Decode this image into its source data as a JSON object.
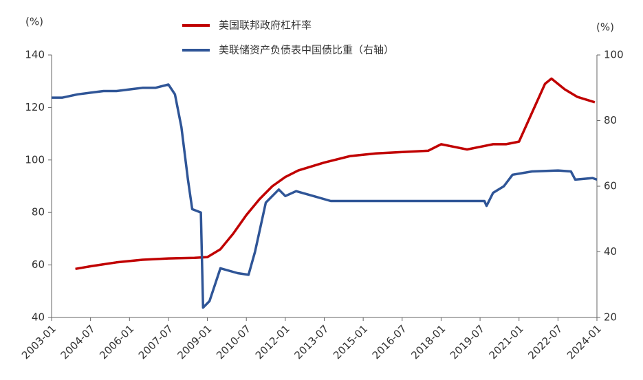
{
  "chart_data": {
    "type": "line",
    "y_unit_label": "(%)",
    "y2_unit_label": "(%)",
    "xlim": [
      "2003-01",
      "2024-01"
    ],
    "xticks": [
      "2003-01",
      "2004-07",
      "2006-01",
      "2007-07",
      "2009-01",
      "2010-07",
      "2012-01",
      "2013-07",
      "2015-01",
      "2016-07",
      "2018-01",
      "2019-07",
      "2021-01",
      "2022-07",
      "2024-01"
    ],
    "ylim": [
      40,
      140
    ],
    "yticks": [
      40,
      60,
      80,
      100,
      120,
      140
    ],
    "y2lim": [
      20,
      100
    ],
    "y2ticks": [
      20,
      40,
      60,
      80,
      100
    ],
    "series": [
      {
        "name": "美国联邦政府杠杆率",
        "color": "#c00000",
        "x": [
          "2003-12",
          "2004-07",
          "2005-07",
          "2006-07",
          "2007-07",
          "2008-07",
          "2009-01",
          "2009-07",
          "2010-01",
          "2010-07",
          "2011-01",
          "2011-07",
          "2012-01",
          "2012-07",
          "2013-07",
          "2014-07",
          "2015-07",
          "2016-07",
          "2017-07",
          "2018-01",
          "2018-07",
          "2019-01",
          "2019-07",
          "2020-01",
          "2020-07",
          "2021-01",
          "2021-07",
          "2022-01",
          "2022-04",
          "2022-10",
          "2023-04",
          "2023-12"
        ],
        "values": [
          58.5,
          59.5,
          61,
          62,
          62.5,
          62.7,
          63,
          66,
          72,
          79,
          85,
          90,
          93.5,
          96,
          99,
          101.5,
          102.5,
          103,
          103.5,
          106,
          105,
          104,
          105,
          106,
          106,
          107,
          118,
          129,
          131,
          127,
          124,
          122
        ]
      },
      {
        "name": "美联储资产负债表中国债比重（右轴）",
        "color": "#2f5597",
        "axis": "y2",
        "x": [
          "2003-01",
          "2003-06",
          "2004-01",
          "2004-07",
          "2005-01",
          "2005-07",
          "2006-01",
          "2006-07",
          "2007-01",
          "2007-07",
          "2007-10",
          "2008-01",
          "2008-04",
          "2008-06",
          "2008-10",
          "2008-11",
          "2009-02",
          "2009-07",
          "2010-03",
          "2010-08",
          "2010-11",
          "2011-04",
          "2011-10",
          "2012-01",
          "2012-06",
          "2013-02",
          "2013-10",
          "2015-01",
          "2016-07",
          "2018-01",
          "2019-09",
          "2019-10",
          "2020-01",
          "2020-06",
          "2020-10",
          "2021-07",
          "2022-07",
          "2023-01",
          "2023-03",
          "2023-11",
          "2024-01"
        ],
        "values": [
          87,
          87,
          88,
          88.5,
          89,
          89,
          89.5,
          90,
          90,
          91,
          88,
          78,
          62,
          53,
          52,
          23,
          25,
          35,
          33.5,
          33,
          40,
          55,
          59,
          57,
          58.5,
          57,
          55.5,
          55.5,
          55.5,
          55.5,
          55.5,
          54,
          58,
          60,
          63.5,
          64.5,
          64.8,
          64.5,
          62,
          62.5,
          62
        ]
      }
    ]
  }
}
